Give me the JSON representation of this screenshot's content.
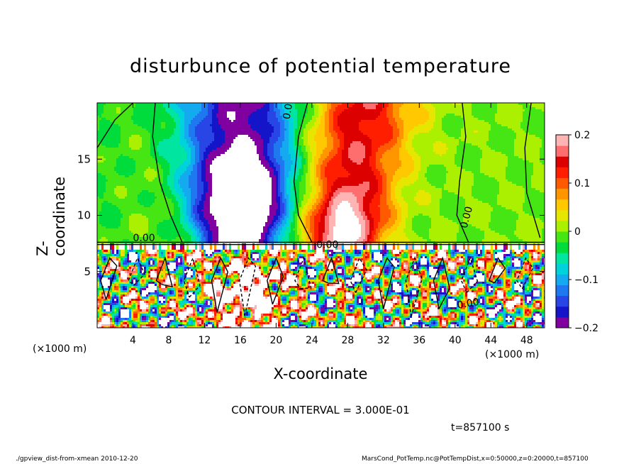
{
  "chart_data": {
    "type": "heatmap",
    "title": "disturbunce of potential temperature",
    "xlabel": "X-coordinate",
    "ylabel": "Z-coordinate",
    "x_unit_label": "(×1000 m)",
    "xlim": [
      0,
      50
    ],
    "ylim": [
      0,
      20
    ],
    "x_ticks": [
      4,
      8,
      12,
      16,
      20,
      24,
      28,
      32,
      36,
      40,
      44,
      48
    ],
    "y_ticks": [
      5,
      10,
      15
    ],
    "colorbar": {
      "range": [
        -0.2,
        0.2
      ],
      "ticks": [
        "0.2",
        "0.1",
        "0",
        "−0.1",
        "−0.2"
      ],
      "tick_values": [
        0.2,
        0.1,
        0,
        -0.1,
        -0.2
      ]
    },
    "contour_labels": [
      "0.00",
      "0.00",
      "0.00",
      "0.00",
      "0.00"
    ],
    "contour_interval_text": "CONTOUR INTERVAL = 3.000E-01",
    "time_text": "t=857100 s",
    "features": {
      "cold_plume_center_x": 16,
      "warm_plume_center_x": 29,
      "boundary_layer_top_z": 7.5,
      "plot_top_z": 20
    }
  },
  "footer": {
    "left": "./gpview_dist-from-xmean  2010-12-20",
    "right": "MarsCond_PotTemp.nc@PotTempDist,x=0:50000,z=0:20000,t=857100"
  },
  "colors": {
    "cmap": [
      "#8000a0",
      "#1414c8",
      "#2846e6",
      "#1e78f0",
      "#14aaf0",
      "#00d2dc",
      "#00e6a0",
      "#00dc3c",
      "#46e614",
      "#aaf000",
      "#e6e600",
      "#ffc800",
      "#ff9600",
      "#ff5a00",
      "#ff1e00",
      "#dc0000",
      "#ff6e6e",
      "#ffb4b4"
    ]
  }
}
